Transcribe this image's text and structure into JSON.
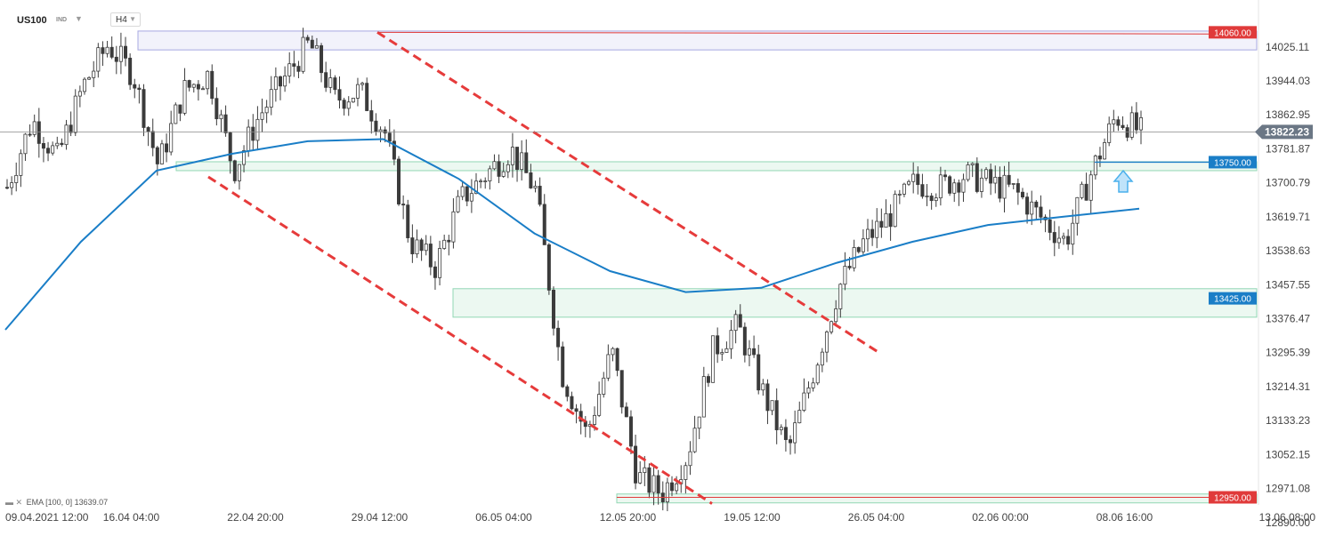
{
  "toolbar": {
    "symbol": "US100",
    "instrument_type": "IND",
    "timeframe": "H4"
  },
  "indicator_legend": {
    "label": "EMA",
    "params": "[100, 0]",
    "value": "13639.07"
  },
  "colors": {
    "candle": "#3b3b3b",
    "ema": "#1a7ec7",
    "channel": "#e63b3b",
    "zone_fill": "#e9f7ef",
    "zone_border": "#7fd1a8",
    "resistance_tag": "#e03a3a",
    "support_tag": "#1a7ec7",
    "price_tag": "#6b7785",
    "arrow": "#4ab0ec",
    "top_box": "#a7a8e0"
  },
  "chart_data": {
    "type": "candlestick",
    "symbol": "US100",
    "timeframe": "H4",
    "ylim": [
      12930,
      14090
    ],
    "y_ticks": [
      "14025.11",
      "13944.03",
      "13862.95",
      "13781.87",
      "13700.79",
      "13619.71",
      "13538.63",
      "13457.55",
      "13376.47",
      "13295.39",
      "13214.31",
      "13133.23",
      "13052.15",
      "12971.08",
      "12890.00"
    ],
    "x_ticks": [
      "09.04.2021 12:00",
      "16.04 04:00",
      "22.04 20:00",
      "29.04 12:00",
      "06.05 04:00",
      "12.05 20:00",
      "19.05 12:00",
      "26.05 04:00",
      "02.06 00:00",
      "08.06 16:00",
      "13.06 08:00"
    ],
    "current_price": "13822.23",
    "levels": [
      {
        "label": "14060.00",
        "value": 14060,
        "kind": "resistance"
      },
      {
        "label": "13750.00",
        "value": 13750,
        "kind": "support"
      },
      {
        "label": "13425.00",
        "value": 13425,
        "kind": "support"
      },
      {
        "label": "12950.00",
        "value": 12950,
        "kind": "resistance"
      }
    ],
    "zones": [
      {
        "from": 13737,
        "to": 13751
      },
      {
        "from": 13380,
        "to": 13448
      },
      {
        "from": 12946,
        "to": 12958
      }
    ],
    "close_path": [
      13690,
      13850,
      13760,
      13930,
      14030,
      13960,
      13740,
      13920,
      13960,
      13730,
      13860,
      13950,
      14035,
      13900,
      13920,
      13820,
      13560,
      13500,
      13660,
      13720,
      13780,
      13680,
      13250,
      13100,
      13300,
      13000,
      12960,
      13050,
      13300,
      13360,
      13200,
      13060,
      13250,
      13450,
      13560,
      13620,
      13700,
      13690,
      13720,
      13700,
      13680,
      13620,
      13560,
      13720,
      13860,
      13822
    ],
    "ema_path": [
      13350,
      13560,
      13730,
      13770,
      13800,
      13805,
      13710,
      13580,
      13490,
      13440,
      13450,
      13510,
      13560,
      13600,
      13620,
      13639
    ],
    "series": [
      {
        "type": "ema",
        "params": "[100, 0]",
        "last": 13639.07
      }
    ]
  }
}
